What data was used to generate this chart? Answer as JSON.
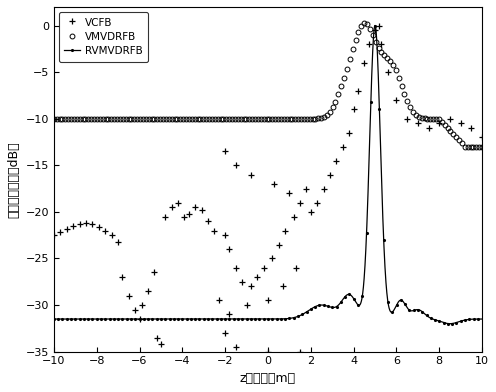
{
  "title": "",
  "xlabel": "z向坐标（m）",
  "ylabel": "归一化空间谱（dB）",
  "xlim": [
    -10,
    10
  ],
  "ylim": [
    -35,
    2
  ],
  "yticks": [
    0,
    -5,
    -10,
    -15,
    -20,
    -25,
    -30,
    -35
  ],
  "xticks": [
    -10,
    -8,
    -6,
    -4,
    -2,
    0,
    2,
    4,
    6,
    8,
    10
  ],
  "legend": [
    "VCFB",
    "VMVDRFB",
    "RVMVDRFB"
  ],
  "background_color": "#ffffff",
  "line_color": "#000000"
}
